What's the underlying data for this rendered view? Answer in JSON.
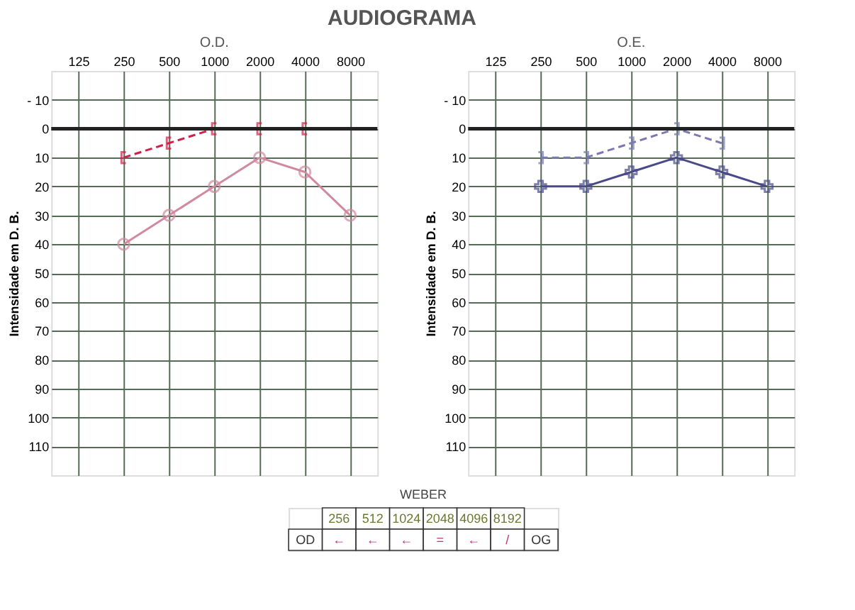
{
  "chart_data": [
    {
      "type": "line",
      "title": "O.D.",
      "ylabel": "Intensidade em D. B.",
      "annotations": [
        "AUDIOGRAMA"
      ],
      "categories": [
        "125",
        "250",
        "500",
        "1000",
        "2000",
        "4000",
        "8000"
      ],
      "series": [
        {
          "color": "#d08aa0",
          "values": [
            null,
            40,
            30,
            20,
            10,
            15,
            30
          ],
          "marker": "circle",
          "line_style": "solid"
        },
        {
          "color": "#d0204a",
          "values": [
            null,
            10,
            5,
            0,
            0,
            0,
            null
          ],
          "marker": "cross",
          "line_style": "dashed"
        }
      ],
      "ylim": [
        120,
        -20
      ],
      "yticks": [
        {
          "value": -10,
          "label": "- 10"
        },
        0,
        10,
        20,
        30,
        40,
        50,
        60,
        70,
        80,
        90,
        100,
        110
      ],
      "ref_lines": [
        {
          "axis": "y",
          "value": 0,
          "color": "#222222"
        }
      ],
      "grid": true,
      "legend": false
    },
    {
      "type": "line",
      "title": "O.E.",
      "ylabel": "Intensidade em D. B.",
      "categories": [
        "125",
        "250",
        "500",
        "1000",
        "2000",
        "4000",
        "8000"
      ],
      "series": [
        {
          "color": "#4a4a8a",
          "values": [
            null,
            20,
            20,
            15,
            10,
            15,
            20
          ],
          "marker": "cross",
          "line_style": "solid"
        },
        {
          "color": "#7a7ab0",
          "values": [
            null,
            10,
            10,
            5,
            0,
            5,
            null
          ],
          "marker": "cross",
          "line_style": "dashed"
        }
      ],
      "ylim": [
        120,
        -20
      ],
      "yticks": [
        {
          "value": -10,
          "label": "- 10"
        },
        0,
        10,
        20,
        30,
        40,
        50,
        60,
        70,
        80,
        90,
        100,
        110
      ],
      "ref_lines": [
        {
          "axis": "y",
          "value": 0,
          "color": "#222222"
        }
      ],
      "grid": true,
      "legend": false
    },
    {
      "type": "other",
      "title": "WEBER",
      "annotations": [
        "256",
        "512",
        "1024",
        "2048",
        "4096",
        "8192",
        "OD",
        "←",
        "←",
        "←",
        "=",
        "←",
        "/",
        "OG"
      ]
    }
  ]
}
